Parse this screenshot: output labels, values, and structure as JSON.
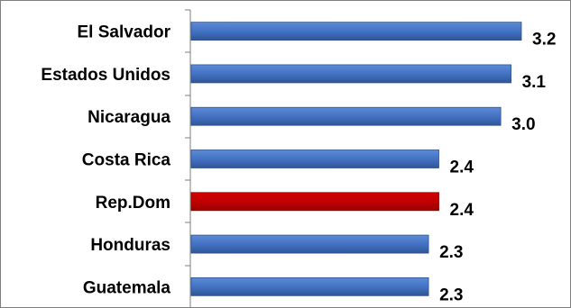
{
  "chart_data": {
    "type": "bar",
    "orientation": "horizontal",
    "categories": [
      "El Salvador",
      "Estados Unidos",
      "Nicaragua",
      "Costa Rica",
      "Rep.Dom",
      "Honduras",
      "Guatemala"
    ],
    "values": [
      3.2,
      3.1,
      3.0,
      2.4,
      2.4,
      2.3,
      2.3
    ],
    "value_labels": [
      "3.2",
      "3.1",
      "3.0",
      "2.4",
      "2.4",
      "2.3",
      "2.3"
    ],
    "bar_colors": [
      "#4472c4",
      "#4472c4",
      "#4472c4",
      "#4472c4",
      "#c00000",
      "#4472c4",
      "#4472c4"
    ],
    "highlight": "Rep.Dom",
    "xlim": [
      0,
      3.2
    ],
    "grid": false,
    "legend": "none"
  }
}
